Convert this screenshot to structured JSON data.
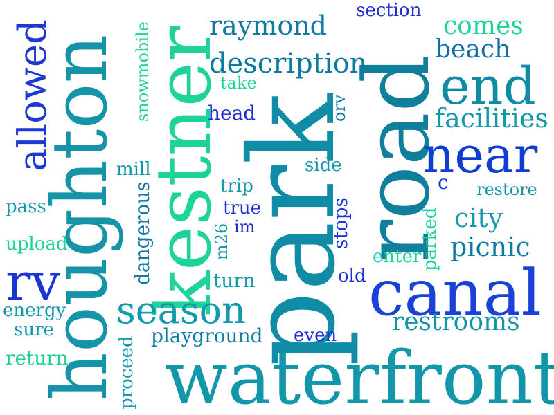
{
  "words": {
    "park": "park",
    "road": "road",
    "kestner": "kestner",
    "houghton": "houghton",
    "waterfront": "waterfront",
    "canal": "canal",
    "near": "near",
    "end": "end",
    "rv": "rv",
    "season": "season",
    "allowed": "allowed",
    "description": "description",
    "raymond": "raymond",
    "facilities": "facilities",
    "beach": "beach",
    "comes": "comes",
    "restrooms": "restrooms",
    "picnic": "picnic",
    "city": "city",
    "section": "section",
    "snowmobile": "snowmobile",
    "take": "take",
    "head": "head",
    "orv": "orv",
    "mill": "mill",
    "side": "side",
    "c": "c",
    "trip": "trip",
    "restore": "restore",
    "pass": "pass",
    "true": "true",
    "dangerous": "dangerous",
    "im": "im",
    "m26": "m26",
    "stops": "stops",
    "parked": "parked",
    "upload": "upload",
    "enter": "enter",
    "old": "old",
    "turn": "turn",
    "energy": "energy",
    "sure": "sure",
    "playground": "playground",
    "even": "even",
    "proceed": "proceed",
    "return": "return"
  },
  "colors": {
    "background": "#ffffff",
    "blue": "#1a2fd6",
    "teal": "#0f8fa8",
    "green": "#1fd69a",
    "dark_teal": "#0a7f9a"
  }
}
